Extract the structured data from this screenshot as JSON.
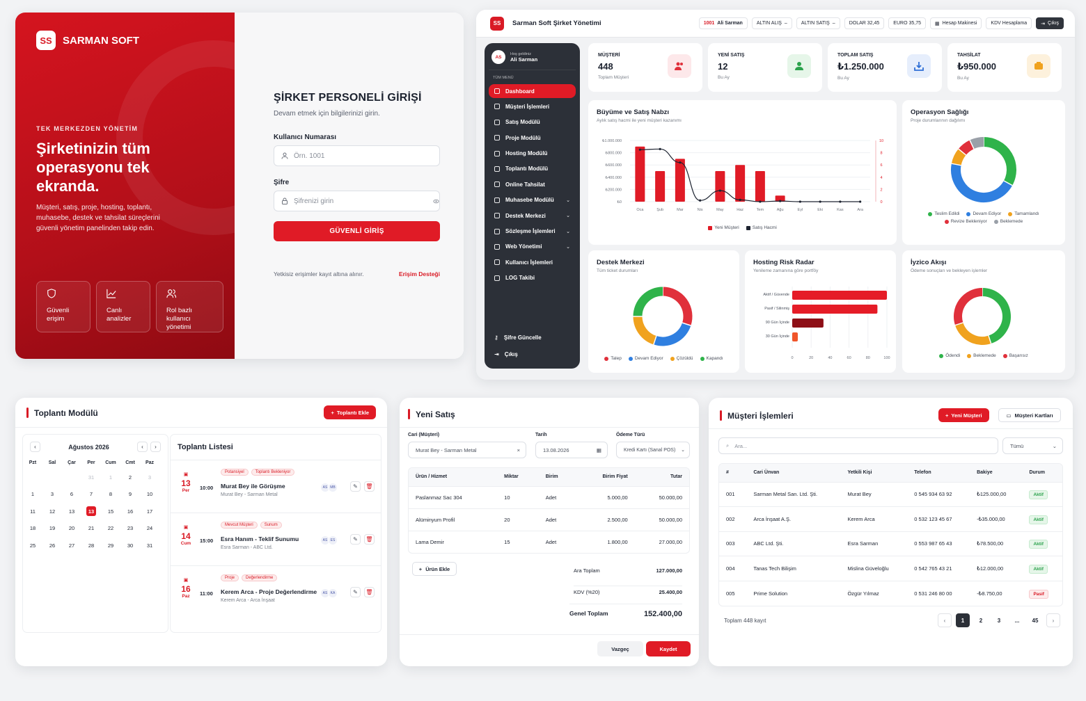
{
  "login": {
    "logo_abbr": "SS",
    "logo_text": "SARMAN SOFT",
    "kicker": "TEK MERKEZDEN YÖNETİM",
    "headline": "Şirketinizin tüm operasyonu tek ekranda.",
    "description": "Müşteri, satış, proje, hosting, toplantı, muhasebe, destek ve tahsilat süreçlerini güvenli yönetim panelinden takip edin.",
    "features": [
      "Güvenli erişim",
      "Canlı analizler",
      "Rol bazlı kullanıcı yönetimi"
    ],
    "form_title": "ŞİRKET PERSONELİ GİRİŞİ",
    "form_subtitle": "Devam etmek için bilgilerinizi girin.",
    "user_label": "Kullanıcı Numarası",
    "user_placeholder": "Örn. 1001",
    "pass_label": "Şifre",
    "pass_placeholder": "Şifrenizi girin",
    "submit": "GÜVENLİ GİRİŞ",
    "footer_note": "Yetkisiz erişimler kayıt altına alınır.",
    "support_link": "Erişim Desteği"
  },
  "dash": {
    "app_title": "Sarman Soft Şirket Yönetimi",
    "topbar": {
      "user_id": "1001",
      "user_name": "Ali Sarman",
      "gold_buy": "ALTIN ALIŞ",
      "gold_sell": "ALTIN SATIŞ",
      "usd": "DOLAR 32,45",
      "eur": "EURO 35,75",
      "calc": "Hesap Makinesi",
      "vat": "KDV Hesaplama",
      "logout": "Çıkış"
    },
    "sidebar": {
      "greet": "Hoş geldiniz",
      "name": "Ali Sarman",
      "avatar": "AS",
      "section": "TÜM MENÜ",
      "items": [
        {
          "label": "Dashboard",
          "chev": ""
        },
        {
          "label": "Müşteri İşlemleri",
          "chev": ""
        },
        {
          "label": "Satış Modülü",
          "chev": ""
        },
        {
          "label": "Proje Modülü",
          "chev": ""
        },
        {
          "label": "Hosting Modülü",
          "chev": ""
        },
        {
          "label": "Toplantı Modülü",
          "chev": ""
        },
        {
          "label": "Online Tahsilat",
          "chev": ""
        },
        {
          "label": "Muhasebe Modülü",
          "chev": "⌄"
        },
        {
          "label": "Destek Merkezi",
          "chev": "⌄"
        },
        {
          "label": "Sözleşme İşlemleri",
          "chev": "⌄"
        },
        {
          "label": "Web Yönetimi",
          "chev": "⌄"
        },
        {
          "label": "Kullanıcı İşlemleri",
          "chev": ""
        },
        {
          "label": "LOG Takibi",
          "chev": ""
        }
      ],
      "change_password": "Şifre Güncelle",
      "logout": "Çıkış"
    },
    "kpis": [
      {
        "label": "MÜŞTERİ",
        "value": "448",
        "sub": "Toplam Müşteri",
        "color": "#fde8ea",
        "icolor": "#e0303b"
      },
      {
        "label": "YENİ SATIŞ",
        "value": "12",
        "sub": "Bu Ay",
        "color": "#e6f6e9",
        "icolor": "#2ba24c"
      },
      {
        "label": "TOPLAM SATIŞ",
        "value": "₺1.250.000",
        "sub": "Bu Ay",
        "color": "#e6eefc",
        "icolor": "#2f6fd6"
      },
      {
        "label": "TAHSİLAT",
        "value": "₺950.000",
        "sub": "Bu Ay",
        "color": "#fdf1dc",
        "icolor": "#f0a21e"
      }
    ],
    "growth": {
      "title": "Büyüme ve Satış Nabzı",
      "subtitle": "Aylık satış hacmi ile yeni müşteri kazanımı",
      "legend_bar": "Yeni Müşteri",
      "legend_line": "Satış Hacmi"
    },
    "ops": {
      "title": "Operasyon Sağlığı",
      "subtitle": "Proje durumlarının dağılımı"
    },
    "support": {
      "title": "Destek Merkezi",
      "subtitle": "Tüm ticket durumları"
    },
    "hosting": {
      "title": "Hosting Risk Radar",
      "subtitle": "Yenileme zamanına göre portföy"
    },
    "iyzico": {
      "title": "İyzico Akışı",
      "subtitle": "Ödeme sonuçları ve bekleyen işlemler"
    }
  },
  "chart_data": [
    {
      "type": "bar",
      "title": "Büyüme ve Satış Nabzı",
      "categories": [
        "Oca",
        "Şub",
        "Mar",
        "Nis",
        "May",
        "Haz",
        "Tem",
        "Ağu",
        "Eyl",
        "Eki",
        "Kas",
        "Ara"
      ],
      "yticks_left": [
        "₺1.000.000",
        "₺800.000",
        "₺600.000",
        "₺400.000",
        "₺200.000",
        "₺0"
      ],
      "yticks_right": [
        "10",
        "8",
        "6",
        "4",
        "2",
        "0"
      ],
      "ylim_left": [
        0,
        1000000
      ],
      "ylim_right": [
        0,
        10
      ],
      "series": [
        {
          "name": "Yeni Müşteri",
          "axis": "right",
          "values": [
            9,
            5,
            7,
            0,
            5,
            6,
            5,
            1,
            0,
            0,
            0,
            0
          ]
        },
        {
          "name": "Satış Hacmi",
          "axis": "left",
          "values": [
            850000,
            860000,
            640000,
            20000,
            180000,
            30000,
            0,
            10000,
            0,
            0,
            0,
            0
          ]
        }
      ],
      "colors": {
        "bar": "#e01b26",
        "line": "#1d2330"
      }
    },
    {
      "type": "pie",
      "title": "Operasyon Sağlığı",
      "labels": [
        "Teslim Edildi",
        "Devam Ediyor",
        "Tamamlandı",
        "Revize Bekleniyor",
        "Beklemede"
      ],
      "values": [
        33,
        45,
        8,
        7,
        7
      ],
      "colors": [
        "#2fb34a",
        "#2f7fe0",
        "#f0a21e",
        "#e0303b",
        "#9aa0a8"
      ]
    },
    {
      "type": "pie",
      "title": "Destek Merkezi",
      "labels": [
        "Talep",
        "Devam Ediyor",
        "Çözüldü",
        "Kapandı"
      ],
      "values": [
        30,
        25,
        20,
        25
      ],
      "colors": [
        "#e0303b",
        "#2f7fe0",
        "#f0a21e",
        "#2fb34a"
      ]
    },
    {
      "type": "bar",
      "title": "Hosting Risk Radar",
      "orientation": "horizontal",
      "categories": [
        "Aktif / Güvende",
        "Pasif / Silinmiş",
        "90 Gün İçinde",
        "30 Gün İçinde"
      ],
      "values": [
        100,
        90,
        33,
        3
      ],
      "xticks": [
        "0",
        "20",
        "40",
        "60",
        "80",
        "100"
      ],
      "xlim": [
        0,
        100
      ],
      "colors": [
        "#e51c27",
        "#e51c27",
        "#8e0f17",
        "#f0552a"
      ]
    },
    {
      "type": "pie",
      "title": "İyzico Akışı",
      "labels": [
        "Ödendi",
        "Beklemede",
        "Başarısız"
      ],
      "values": [
        45,
        25,
        30
      ],
      "colors": [
        "#2fb34a",
        "#f0a21e",
        "#e0303b"
      ]
    }
  ],
  "meeting": {
    "title": "Toplantı Modülü",
    "add": "Toplantı Ekle",
    "month": "Ağustos 2026",
    "weekdays": [
      "Pzt",
      "Sal",
      "Çar",
      "Per",
      "Cum",
      "Cmt",
      "Paz"
    ],
    "days": [
      {
        "d": "",
        "m": true
      },
      {
        "d": "",
        "m": true
      },
      {
        "d": "",
        "m": true
      },
      {
        "d": "31",
        "m": true
      },
      {
        "d": "1",
        "m": true
      },
      {
        "d": "2",
        "m": false
      },
      {
        "d": "3",
        "m": true
      },
      {
        "d": "1",
        "m": false
      },
      {
        "d": "3",
        "m": false
      },
      {
        "d": "6",
        "m": false
      },
      {
        "d": "7",
        "m": false
      },
      {
        "d": "8",
        "m": false
      },
      {
        "d": "9",
        "m": false
      },
      {
        "d": "10",
        "m": false
      },
      {
        "d": "11",
        "m": false
      },
      {
        "d": "12",
        "m": false
      },
      {
        "d": "13",
        "m": false
      },
      {
        "d": "13",
        "m": false,
        "today": true
      },
      {
        "d": "15",
        "m": false
      },
      {
        "d": "16",
        "m": false
      },
      {
        "d": "17",
        "m": false
      },
      {
        "d": "18",
        "m": false
      },
      {
        "d": "19",
        "m": false
      },
      {
        "d": "20",
        "m": false
      },
      {
        "d": "21",
        "m": false
      },
      {
        "d": "22",
        "m": false
      },
      {
        "d": "23",
        "m": false
      },
      {
        "d": "24",
        "m": false
      },
      {
        "d": "25",
        "m": false
      },
      {
        "d": "26",
        "m": false
      },
      {
        "d": "27",
        "m": false
      },
      {
        "d": "28",
        "m": false
      },
      {
        "d": "29",
        "m": false
      },
      {
        "d": "30",
        "m": false
      },
      {
        "d": "31",
        "m": false
      }
    ],
    "list_title": "Toplantı Listesi",
    "items": [
      {
        "day": "13",
        "wd": "Per",
        "time": "10:00",
        "tags": [
          "Potansiyel",
          "Toplantı Bekleniyor"
        ],
        "title": "Murat Bey ile Görüşme",
        "sub": "Murat Bey - Sarman Metal",
        "av": [
          "AS",
          "MB"
        ]
      },
      {
        "day": "14",
        "wd": "Cum",
        "time": "15:00",
        "tags": [
          "Mevcut Müşteri",
          "Sunum"
        ],
        "title": "Esra Hanım - Teklif Sunumu",
        "sub": "Esra Sarman - ABC Ltd.",
        "av": [
          "AS",
          "ES"
        ]
      },
      {
        "day": "16",
        "wd": "Paz",
        "time": "11:00",
        "tags": [
          "Proje",
          "Değerlendirme"
        ],
        "title": "Kerem Arca - Proje Değerlendirme",
        "sub": "Kerem Arca - Arca İnşaat",
        "av": [
          "AS",
          "KA"
        ]
      }
    ]
  },
  "sale": {
    "title": "Yeni Satış",
    "customer_label": "Cari (Müşteri)",
    "customer_value": "Murat Bey - Sarman Metal",
    "date_label": "Tarih",
    "date_value": "13.08.2026",
    "pay_label": "Ödeme Türü",
    "pay_value": "Kredi Kartı (Sanal POS)",
    "cols": [
      "Ürün / Hizmet",
      "Miktar",
      "Birim",
      "Birim Fiyat",
      "Tutar"
    ],
    "rows": [
      [
        "Paslanmaz Sac 304",
        "10",
        "Adet",
        "5.000,00",
        "50.000,00"
      ],
      [
        "Alüminyum Profil",
        "20",
        "Adet",
        "2.500,00",
        "50.000,00"
      ],
      [
        "Lama Demir",
        "15",
        "Adet",
        "1.800,00",
        "27.000,00"
      ]
    ],
    "add_item": "Ürün Ekle",
    "subtotal_label": "Ara Toplam",
    "subtotal": "127.000,00",
    "vat_label": "KDV (%20)",
    "vat": "25.400,00",
    "total_label": "Genel Toplam",
    "total": "152.400,00",
    "cancel": "Vazgeç",
    "save": "Kaydet"
  },
  "customers": {
    "title": "Müşteri İşlemleri",
    "new": "Yeni Müşteri",
    "cards": "Müşteri Kartları",
    "search_placeholder": "Ara...",
    "filter": "Tümü",
    "cols": [
      "#",
      "Cari Ünvan",
      "Yetkili Kişi",
      "Telefon",
      "Bakiye",
      "Durum"
    ],
    "rows": [
      {
        "no": "001",
        "name": "Sarman Metal San. Ltd. Şti.",
        "contact": "Murat Bey",
        "phone": "0 545 934 63 92",
        "balance": "₺125.000,00",
        "status": "Aktif",
        "ok": true
      },
      {
        "no": "002",
        "name": "Arca İnşaat A.Ş.",
        "contact": "Kerem Arca",
        "phone": "0 532 123 45 67",
        "balance": "-₺35.000,00",
        "status": "Aktif",
        "ok": true
      },
      {
        "no": "003",
        "name": "ABC Ltd. Şti.",
        "contact": "Esra Sarman",
        "phone": "0 553 987 65 43",
        "balance": "₺78.500,00",
        "status": "Aktif",
        "ok": true
      },
      {
        "no": "004",
        "name": "Tanas Tech Bilişim",
        "contact": "Mislina Güveloğlu",
        "phone": "0 542 765 43 21",
        "balance": "₺12.000,00",
        "status": "Aktif",
        "ok": true
      },
      {
        "no": "005",
        "name": "Prime Solution",
        "contact": "Özgür Yılmaz",
        "phone": "0 531 246 80 00",
        "balance": "-₺8.750,00",
        "status": "Pasif",
        "ok": false
      }
    ],
    "total_records": "Toplam 448 kayıt",
    "pages": [
      "1",
      "2",
      "3",
      "...",
      "45"
    ]
  }
}
